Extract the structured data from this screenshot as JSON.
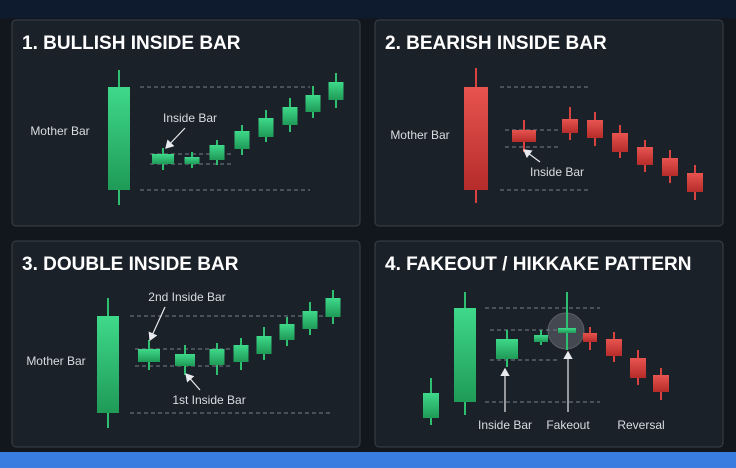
{
  "panels": [
    {
      "title": "1. BULLISH INSIDE BAR",
      "labels": [
        "Mother Bar",
        "Inside Bar"
      ]
    },
    {
      "title": "2. BEARISH INSIDE BAR",
      "labels": [
        "Mother Bar",
        "Inside Bar"
      ]
    },
    {
      "title": "3. DOUBLE INSIDE BAR",
      "labels": [
        "Mother Bar",
        "2nd Inside Bar",
        "1st Inside Bar"
      ]
    },
    {
      "title": "4. FAKEOUT / HIKKAKE PATTERN",
      "labels": [
        "Inside Bar",
        "Fakeout",
        "Reversal"
      ]
    }
  ]
}
